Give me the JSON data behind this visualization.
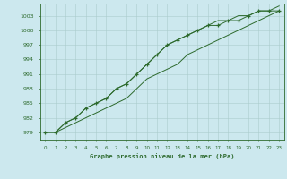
{
  "title": "Graphe pression niveau de la mer (hPa)",
  "x_values": [
    0,
    1,
    2,
    3,
    4,
    5,
    6,
    7,
    8,
    9,
    10,
    11,
    12,
    13,
    14,
    15,
    16,
    17,
    18,
    19,
    20,
    21,
    22,
    23
  ],
  "line_main": [
    979,
    979,
    981,
    982,
    984,
    985,
    986,
    988,
    989,
    991,
    993,
    995,
    997,
    998,
    999,
    1000,
    1001,
    1001,
    1002,
    1002,
    1003,
    1004,
    1004,
    1004
  ],
  "line_low": [
    979,
    979,
    980,
    981,
    982,
    983,
    984,
    985,
    986,
    988,
    990,
    991,
    992,
    993,
    995,
    996,
    997,
    998,
    999,
    1000,
    1001,
    1002,
    1003,
    1004
  ],
  "line_high": [
    979,
    979,
    981,
    982,
    984,
    985,
    986,
    988,
    989,
    991,
    993,
    995,
    997,
    998,
    999,
    1000,
    1001,
    1002,
    1002,
    1003,
    1003,
    1004,
    1004,
    1005
  ],
  "ylim": [
    977.5,
    1005.5
  ],
  "yticks": [
    979,
    982,
    985,
    988,
    991,
    994,
    997,
    1000,
    1003
  ],
  "xlim": [
    -0.5,
    23.5
  ],
  "bg_color": "#cce8ee",
  "grid_color": "#aacccc",
  "line_color": "#2d6a2d",
  "title_color": "#2d6a2d",
  "tick_color": "#2d6a2d",
  "axis_color": "#2d6a2d",
  "figsize": [
    3.2,
    2.0
  ],
  "dpi": 100
}
